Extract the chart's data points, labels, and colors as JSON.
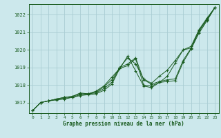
{
  "bg_color": "#cce8ec",
  "grid_color": "#aacdd4",
  "line_color": "#1a5c20",
  "xlabel": "Graphe pression niveau de la mer (hPa)",
  "xlim": [
    -0.5,
    23.5
  ],
  "ylim": [
    1016.4,
    1022.6
  ],
  "yticks": [
    1017,
    1018,
    1019,
    1020,
    1021,
    1022
  ],
  "xticks": [
    0,
    1,
    2,
    3,
    4,
    5,
    6,
    7,
    8,
    9,
    10,
    11,
    12,
    13,
    14,
    15,
    16,
    17,
    18,
    19,
    20,
    21,
    22,
    23
  ],
  "series": [
    [
      1016.55,
      1017.0,
      1017.1,
      1017.15,
      1017.2,
      1017.3,
      1017.4,
      1017.45,
      1017.5,
      1017.7,
      1018.05,
      1018.95,
      1019.1,
      1019.5,
      1018.0,
      1017.95,
      1018.15,
      1018.2,
      1018.25,
      1019.3,
      1020.05,
      1020.95,
      1021.65,
      1022.4
    ],
    [
      1016.55,
      1017.0,
      1017.1,
      1017.2,
      1017.25,
      1017.3,
      1017.45,
      1017.5,
      1017.55,
      1017.8,
      1018.15,
      1019.0,
      1019.2,
      1019.55,
      1018.3,
      1018.05,
      1018.2,
      1018.3,
      1018.35,
      1019.4,
      1020.1,
      1021.05,
      1021.7,
      1022.4
    ],
    [
      1016.55,
      1017.0,
      1017.1,
      1017.2,
      1017.3,
      1017.35,
      1017.5,
      1017.5,
      1017.6,
      1017.9,
      1018.3,
      1019.0,
      1019.55,
      1019.2,
      1018.35,
      1018.1,
      1018.5,
      1018.85,
      1019.4,
      1020.0,
      1020.1,
      1021.1,
      1021.75,
      1022.4
    ],
    [
      1016.55,
      1017.0,
      1017.1,
      1017.2,
      1017.3,
      1017.35,
      1017.55,
      1017.5,
      1017.65,
      1017.95,
      1018.45,
      1018.95,
      1019.65,
      1018.8,
      1017.95,
      1017.85,
      1018.15,
      1018.5,
      1019.25,
      1020.0,
      1020.2,
      1021.15,
      1021.8,
      1022.4
    ]
  ]
}
